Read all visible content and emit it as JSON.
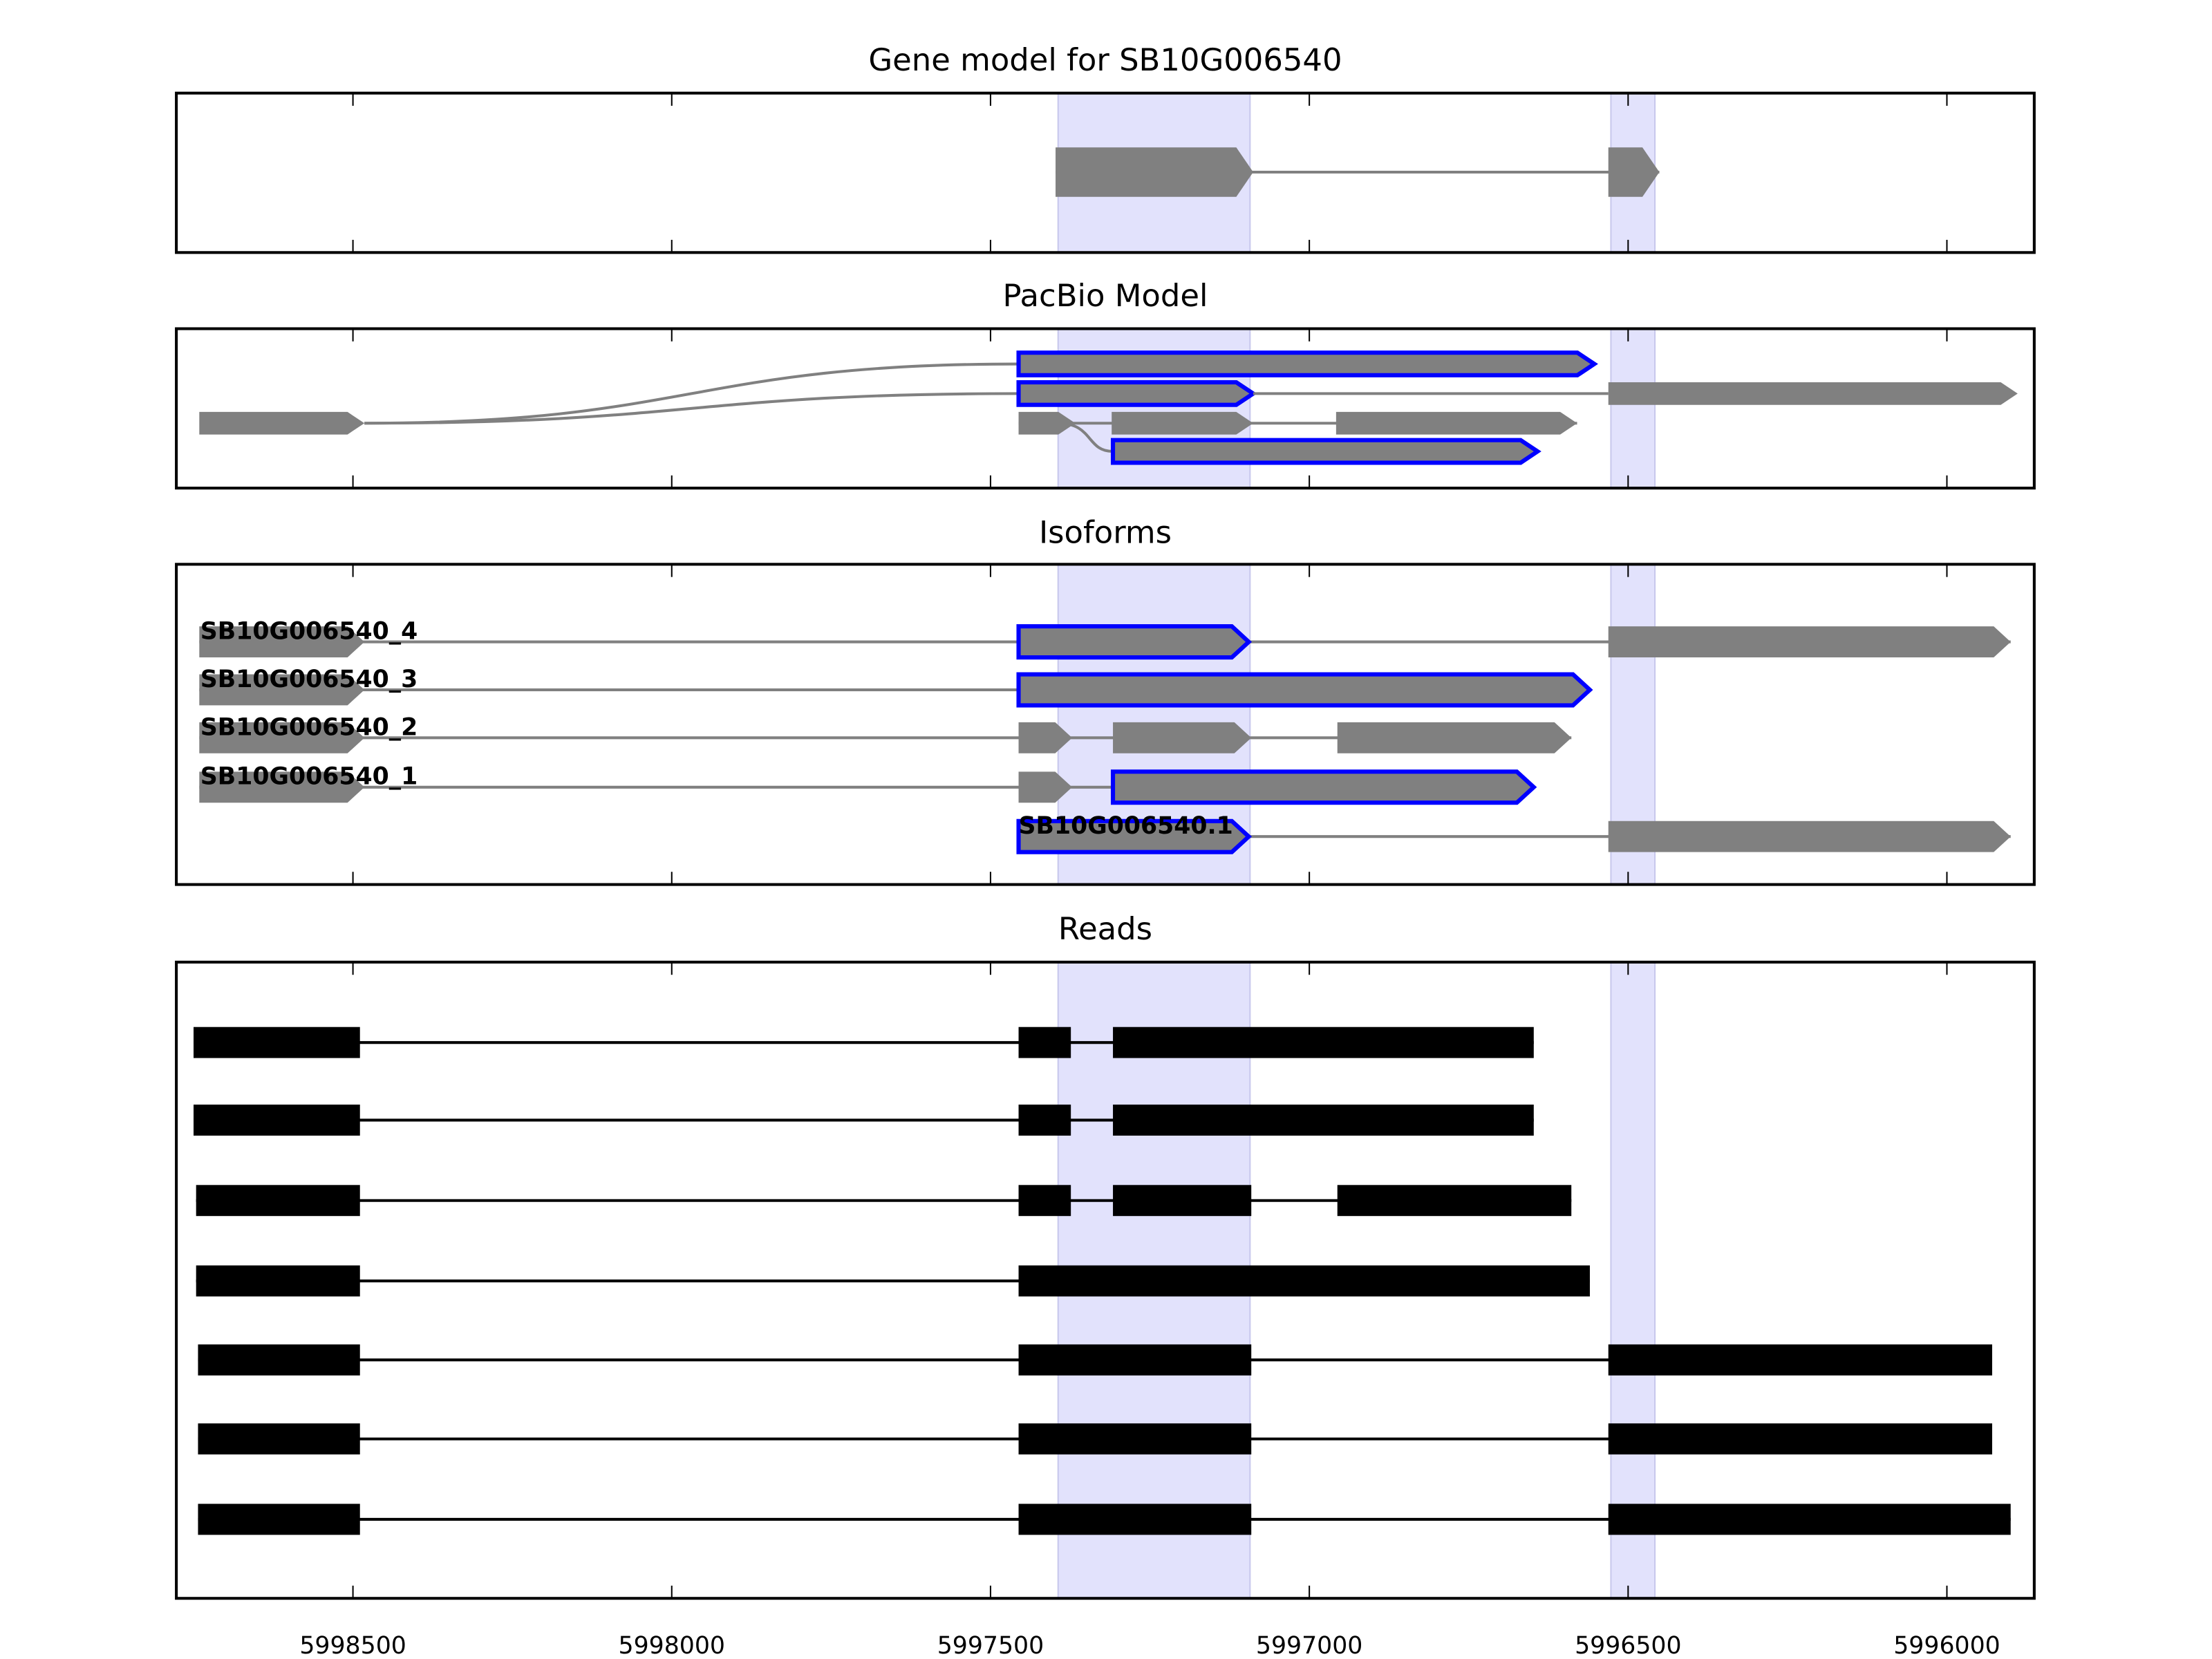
{
  "chart_data": {
    "type": "gene-track",
    "xlim": [
      5998777,
      5995863
    ],
    "x_ticks": [
      5998500,
      5998000,
      5997500,
      5997000,
      5996500,
      5996000
    ],
    "x_tick_labels": [
      "5998500",
      "5998000",
      "5997500",
      "5997000",
      "5996500",
      "5996000"
    ],
    "highlight_regions": [
      [
        5997394,
        5997093
      ],
      [
        5996527,
        5996458
      ]
    ],
    "colors": {
      "exon": "#808080",
      "highlight_outline": "#0000ff",
      "read": "#000000",
      "shade": "#e2e2fc"
    },
    "panels": [
      {
        "title": "Gene model for SB10G006540",
        "tracks": [
          {
            "label": "",
            "outlined": false,
            "exons": [
              [
                5997398,
                5997088
              ],
              [
                5996531,
                5996451
              ]
            ]
          }
        ]
      },
      {
        "title": "PacBio Model",
        "tracks": [
          {
            "label": "",
            "exons": [
              [
                5998741,
                5998482
              ]
            ],
            "outlined": false
          },
          {
            "label": "",
            "exons": [
              [
                5997456,
                5996553
              ]
            ],
            "outlined": true,
            "from_first": true
          },
          {
            "label": "",
            "exons": [
              [
                5997456,
                5997088
              ]
            ],
            "outlined": true,
            "from_first": true
          },
          {
            "label": "",
            "exons": [
              [
                5996531,
                5995889
              ]
            ],
            "outlined": false
          },
          {
            "label": "",
            "exons": [
              [
                5997456,
                5997367
              ],
              [
                5997310,
                5997088
              ],
              [
                5996958,
                5996580
              ]
            ],
            "outlined": false
          },
          {
            "label": "",
            "exons": [
              [
                5997308,
                5996642
              ]
            ],
            "outlined": true
          }
        ]
      },
      {
        "title": "Isoforms",
        "tracks": [
          {
            "label": "SB10G006540_4",
            "exons": [
              [
                5998741,
                5998482
              ],
              [
                5997456,
                5997095
              ],
              [
                5996531,
                5995900
              ]
            ],
            "outlined_exons": [
              1
            ]
          },
          {
            "label": "SB10G006540_3",
            "exons": [
              [
                5998741,
                5998482
              ],
              [
                5997456,
                5996560
              ]
            ],
            "outlined_exons": [
              1
            ]
          },
          {
            "label": "SB10G006540_2",
            "exons": [
              [
                5998741,
                5998482
              ],
              [
                5997456,
                5997372
              ],
              [
                5997308,
                5997091
              ],
              [
                5996956,
                5996589
              ]
            ],
            "outlined_exons": []
          },
          {
            "label": "SB10G006540_1",
            "exons": [
              [
                5998741,
                5998482
              ],
              [
                5997456,
                5997372
              ],
              [
                5997308,
                5996648
              ]
            ],
            "outlined_exons": [
              2
            ]
          },
          {
            "label": "SB10G006540.1",
            "exons": [
              [
                5997456,
                5997095
              ],
              [
                5996531,
                5995900
              ]
            ],
            "outlined_exons": [
              0
            ]
          }
        ]
      },
      {
        "title": "Reads",
        "tracks": [
          {
            "exons": [
              [
                5998750,
                5998489
              ],
              [
                5997456,
                5997374
              ],
              [
                5997308,
                5996648
              ]
            ]
          },
          {
            "exons": [
              [
                5998750,
                5998489
              ],
              [
                5997456,
                5997374
              ],
              [
                5997308,
                5996648
              ]
            ]
          },
          {
            "exons": [
              [
                5998746,
                5998489
              ],
              [
                5997456,
                5997374
              ],
              [
                5997308,
                5997091
              ],
              [
                5996956,
                5996589
              ]
            ]
          },
          {
            "exons": [
              [
                5998746,
                5998489
              ],
              [
                5997456,
                5996560
              ]
            ]
          },
          {
            "exons": [
              [
                5998743,
                5998489
              ],
              [
                5997456,
                5997091
              ],
              [
                5996531,
                5995929
              ]
            ]
          },
          {
            "exons": [
              [
                5998743,
                5998489
              ],
              [
                5997456,
                5997091
              ],
              [
                5996531,
                5995929
              ]
            ]
          },
          {
            "exons": [
              [
                5998743,
                5998489
              ],
              [
                5997456,
                5997091
              ],
              [
                5996531,
                5995900
              ]
            ]
          }
        ]
      }
    ]
  }
}
